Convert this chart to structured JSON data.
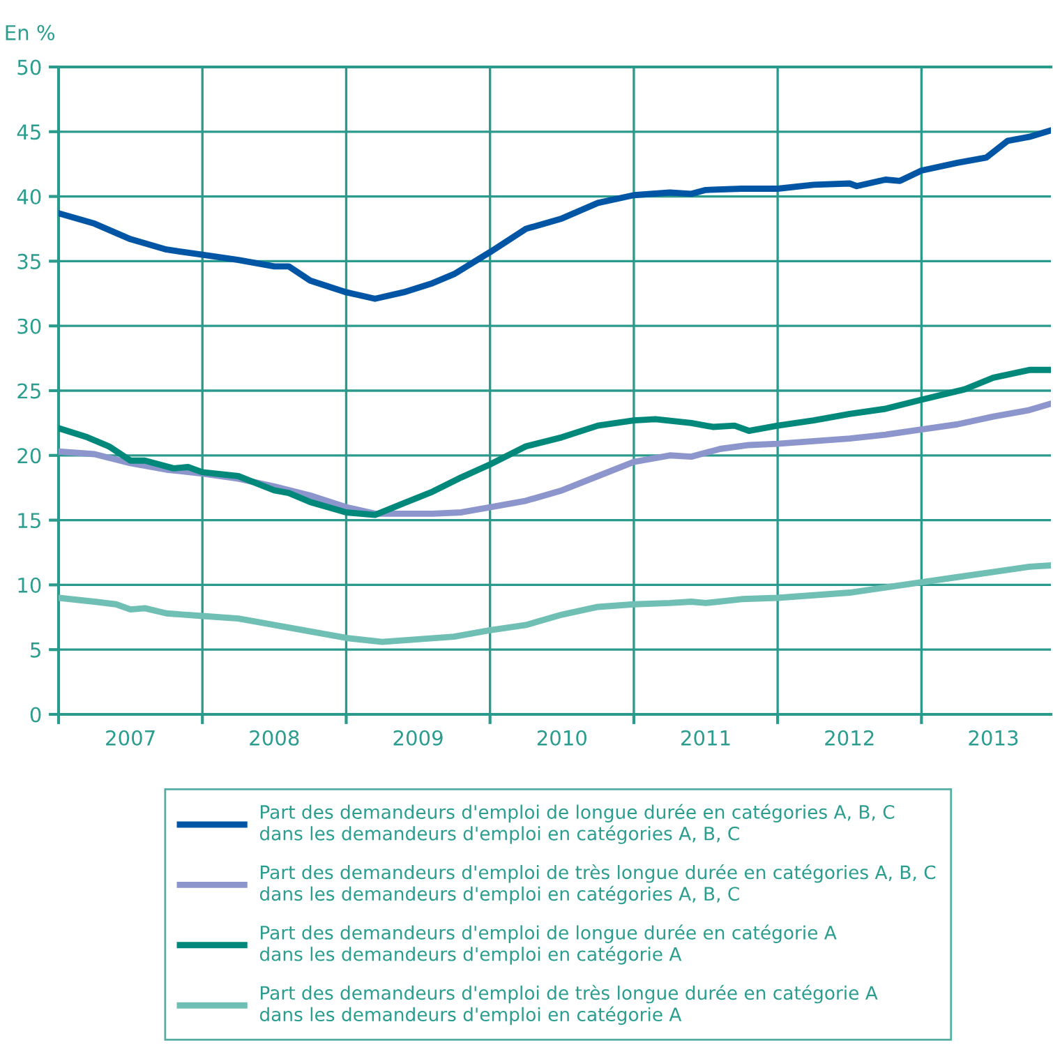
{
  "chart_data": {
    "type": "line",
    "ylabel": "En %",
    "ylim": [
      0,
      50
    ],
    "yticks": [
      0,
      5,
      10,
      15,
      20,
      25,
      30,
      35,
      40,
      45,
      50
    ],
    "xlim": [
      2007,
      2013.9
    ],
    "xticks": [
      {
        "value": 2007,
        "label": null
      },
      {
        "value": 2007.5,
        "label": "2007"
      },
      {
        "value": 2008,
        "label": null
      },
      {
        "value": 2008.5,
        "label": "2008"
      },
      {
        "value": 2009,
        "label": null
      },
      {
        "value": 2009.5,
        "label": "2009"
      },
      {
        "value": 2010,
        "label": null
      },
      {
        "value": 2010.5,
        "label": "2010"
      },
      {
        "value": 2011,
        "label": null
      },
      {
        "value": 2011.5,
        "label": "2011"
      },
      {
        "value": 2012,
        "label": null
      },
      {
        "value": 2012.5,
        "label": "2012"
      },
      {
        "value": 2013,
        "label": null
      },
      {
        "value": 2013.5,
        "label": "2013"
      }
    ],
    "grid": true,
    "legend": "bottom",
    "marker": "none",
    "line_style": "solid",
    "series": [
      {
        "name": "Part des demandeurs d'emploi de longue durée en catégories A, B, C\ndans les demandeurs d'emploi en catégories A, B, C",
        "color": "#0055a4",
        "x": [
          2007.0,
          2007.25,
          2007.5,
          2007.75,
          2008.0,
          2008.25,
          2008.5,
          2008.6,
          2008.75,
          2009.0,
          2009.2,
          2009.4,
          2009.6,
          2009.75,
          2010.0,
          2010.25,
          2010.5,
          2010.75,
          2011.0,
          2011.25,
          2011.4,
          2011.5,
          2011.75,
          2012.0,
          2012.25,
          2012.5,
          2012.55,
          2012.75,
          2012.85,
          2013.0,
          2013.25,
          2013.45,
          2013.6,
          2013.75,
          2013.9
        ],
        "values": [
          38.7,
          37.9,
          36.7,
          35.9,
          35.5,
          35.1,
          34.6,
          34.6,
          33.5,
          32.6,
          32.1,
          32.6,
          33.3,
          34.0,
          35.7,
          37.5,
          38.3,
          39.5,
          40.1,
          40.3,
          40.2,
          40.5,
          40.6,
          40.6,
          40.9,
          41.0,
          40.8,
          41.3,
          41.2,
          42.0,
          42.6,
          43.0,
          44.3,
          44.6,
          45.1
        ]
      },
      {
        "name": "Part des demandeurs d'emploi de très longue durée en catégories A, B, C\ndans les demandeurs d'emploi en catégories A, B, C",
        "color": "#8c96cc",
        "x": [
          2007.0,
          2007.25,
          2007.5,
          2007.75,
          2008.0,
          2008.25,
          2008.5,
          2008.75,
          2009.0,
          2009.2,
          2009.4,
          2009.6,
          2009.8,
          2010.0,
          2010.25,
          2010.5,
          2010.75,
          2011.0,
          2011.25,
          2011.4,
          2011.6,
          2011.8,
          2012.0,
          2012.25,
          2012.5,
          2012.75,
          2013.0,
          2013.25,
          2013.5,
          2013.75,
          2013.9
        ],
        "values": [
          20.3,
          20.1,
          19.4,
          18.9,
          18.6,
          18.2,
          17.6,
          16.9,
          16.0,
          15.5,
          15.5,
          15.5,
          15.6,
          16.0,
          16.5,
          17.3,
          18.4,
          19.5,
          20.0,
          19.9,
          20.5,
          20.8,
          20.9,
          21.1,
          21.3,
          21.6,
          22.0,
          22.4,
          23.0,
          23.5,
          24.0
        ]
      },
      {
        "name": "Part des demandeurs d'emploi de longue durée en catégorie A\ndans les demandeurs d'emploi en catégorie A",
        "color": "#00897b",
        "x": [
          2007.0,
          2007.2,
          2007.35,
          2007.5,
          2007.6,
          2007.8,
          2007.9,
          2008.0,
          2008.25,
          2008.5,
          2008.6,
          2008.75,
          2009.0,
          2009.2,
          2009.4,
          2009.6,
          2009.8,
          2010.0,
          2010.25,
          2010.5,
          2010.75,
          2011.0,
          2011.15,
          2011.4,
          2011.55,
          2011.7,
          2011.8,
          2012.0,
          2012.25,
          2012.5,
          2012.75,
          2013.0,
          2013.3,
          2013.5,
          2013.75,
          2013.9
        ],
        "values": [
          22.1,
          21.4,
          20.7,
          19.6,
          19.6,
          19.0,
          19.1,
          18.7,
          18.4,
          17.3,
          17.1,
          16.4,
          15.6,
          15.4,
          16.3,
          17.2,
          18.3,
          19.3,
          20.7,
          21.4,
          22.3,
          22.7,
          22.8,
          22.5,
          22.2,
          22.3,
          21.9,
          22.3,
          22.7,
          23.2,
          23.6,
          24.3,
          25.1,
          26.0,
          26.6,
          26.6
        ]
      },
      {
        "name": "Part des demandeurs d'emploi de très longue durée en catégorie A\ndans les demandeurs d'emploi en catégorie A",
        "color": "#6fbfb4",
        "x": [
          2007.0,
          2007.25,
          2007.4,
          2007.5,
          2007.6,
          2007.75,
          2008.0,
          2008.25,
          2008.5,
          2008.75,
          2009.0,
          2009.25,
          2009.5,
          2009.75,
          2010.0,
          2010.25,
          2010.5,
          2010.75,
          2011.0,
          2011.25,
          2011.4,
          2011.5,
          2011.75,
          2012.0,
          2012.25,
          2012.5,
          2012.75,
          2013.0,
          2013.25,
          2013.5,
          2013.75,
          2013.9
        ],
        "values": [
          9.0,
          8.7,
          8.5,
          8.1,
          8.2,
          7.8,
          7.6,
          7.4,
          6.9,
          6.4,
          5.9,
          5.6,
          5.8,
          6.0,
          6.5,
          6.9,
          7.7,
          8.3,
          8.5,
          8.6,
          8.7,
          8.6,
          8.9,
          9.0,
          9.2,
          9.4,
          9.8,
          10.2,
          10.6,
          11.0,
          11.4,
          11.5
        ]
      }
    ]
  }
}
